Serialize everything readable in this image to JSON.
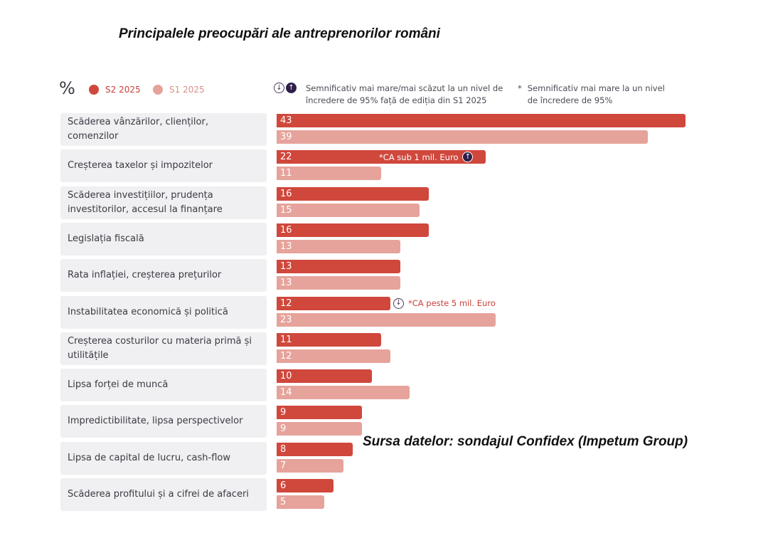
{
  "title": "Principalele preocupări ale antreprenorilor români",
  "unit_label": "%",
  "legend": [
    {
      "name": "S2 2025",
      "color": "#d0473c",
      "text_color": "#c9413a"
    },
    {
      "name": "S1 2025",
      "color": "#e6a39b",
      "text_color": "#d98f87"
    }
  ],
  "notes": {
    "significance": "Semnificativ mai mare/mai scăzut la un nivel de încredere de 95% față de ediția din S1 2025",
    "star_symbol": "*",
    "star": "Semnificativ mai mare la un nivel de încredere de 95%",
    "down_icon": "arrow-down-circle-icon",
    "up_icon": "arrow-up-circle-icon"
  },
  "source": "Sursa datelor: sondajul Confidex (Impetum Group)",
  "chart_data": {
    "type": "bar",
    "orientation": "horizontal",
    "title": "Principalele preocupări ale antreprenorilor români",
    "xlabel": "%",
    "ylabel": "",
    "xlim": [
      0,
      43
    ],
    "categories": [
      "Scăderea vânzărilor, clienților, comenzilor",
      "Creșterea taxelor și impozitelor",
      "Scăderea investițiilor, prudența investitorilor, accesul la finanțare",
      "Legislația fiscală",
      "Rata inflației, creșterea prețurilor",
      "Instabilitatea economică și politică",
      "Creșterea costurilor cu materia primă și utilitățile",
      "Lipsa forței de muncă",
      "Impredictibilitate, lipsa perspectivelor",
      "Lipsa de capital de lucru, cash-flow",
      "Scăderea profitului și a cifrei de afaceri"
    ],
    "series": [
      {
        "name": "S2 2025",
        "values": [
          43,
          22,
          16,
          16,
          13,
          12,
          11,
          10,
          9,
          8,
          6
        ]
      },
      {
        "name": "S1 2025",
        "values": [
          39,
          11,
          15,
          13,
          13,
          23,
          12,
          14,
          9,
          7,
          5
        ]
      }
    ],
    "annotations": [
      {
        "category_index": 1,
        "series": "S2 2025",
        "text": "*CA sub 1 mil. Euro",
        "direction": "up"
      },
      {
        "category_index": 5,
        "series": "S2 2025",
        "text": "*CA peste 5 mil. Euro",
        "direction": "down"
      }
    ],
    "legend_position": "top-left",
    "grid": false
  }
}
